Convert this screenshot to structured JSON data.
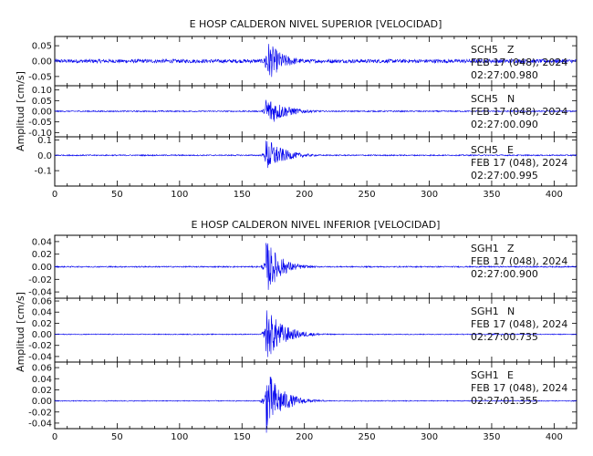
{
  "chart_data": [
    {
      "type": "line",
      "title": "E HOSP CALDERON NIVEL SUPERIOR [VELOCIDAD]",
      "ylabel": "Amplitud [cm/s]",
      "xlabel": "",
      "xlim": [
        0,
        418
      ],
      "xticks": [
        0,
        50,
        100,
        150,
        200,
        250,
        300,
        350,
        400
      ],
      "xtick_labels": [
        "0",
        "50",
        "100",
        "150",
        "200",
        "250",
        "300",
        "350",
        "400"
      ],
      "panels": [
        {
          "ylim": [
            -0.08,
            0.08
          ],
          "yticks": [
            -0.05,
            0.0,
            0.05
          ],
          "ytick_labels": [
            "-0.05",
            "0.00",
            "0.05"
          ],
          "station": "SCH5",
          "component": "Z",
          "date": "FEB 17 (048), 2024",
          "time": "02:27:00.980",
          "series": [
            {
              "component": "Z",
              "noise_amp": 0.006,
              "event_onset_s": 168,
              "peak_amp": 0.075,
              "decay_s": 12
            }
          ]
        },
        {
          "ylim": [
            -0.12,
            0.12
          ],
          "yticks": [
            -0.1,
            -0.05,
            0.0,
            0.05,
            0.1
          ],
          "ytick_labels": [
            "-0.10",
            "-0.05",
            "0.00",
            "0.05",
            "0.10"
          ],
          "station": "SCH5",
          "component": "N",
          "date": "FEB 17 (048), 2024",
          "time": "02:27:00.090",
          "series": [
            {
              "component": "N",
              "noise_amp": 0.003,
              "event_onset_s": 168,
              "peak_amp": 0.08,
              "decay_s": 14
            }
          ]
        },
        {
          "ylim": [
            -0.2,
            0.12
          ],
          "yticks": [
            -0.1,
            0.0,
            0.1
          ],
          "ytick_labels": [
            "-0.1",
            "0.0",
            "0.1"
          ],
          "station": "SCH5",
          "component": "E",
          "date": "FEB 17 (048), 2024",
          "time": "02:27:00.995",
          "series": [
            {
              "component": "E",
              "noise_amp": 0.004,
              "event_onset_s": 168,
              "peak_amp": 0.12,
              "decay_s": 13
            }
          ]
        }
      ]
    },
    {
      "type": "line",
      "title": "E HOSP CALDERON NIVEL INFERIOR [VELOCIDAD]",
      "ylabel": "Amplitud [cm/s]",
      "xlabel": "",
      "xlim": [
        0,
        418
      ],
      "xticks": [
        0,
        50,
        100,
        150,
        200,
        250,
        300,
        350,
        400
      ],
      "xtick_labels": [
        "0",
        "50",
        "100",
        "150",
        "200",
        "250",
        "300",
        "350",
        "400"
      ],
      "panels": [
        {
          "ylim": [
            -0.05,
            0.05
          ],
          "yticks": [
            -0.04,
            -0.02,
            0.0,
            0.02,
            0.04
          ],
          "ytick_labels": [
            "-0.04",
            "-0.02",
            "0.00",
            "0.02",
            "0.04"
          ],
          "station": "SGH1",
          "component": "Z",
          "date": "FEB 17 (048), 2024",
          "time": "02:27:00.900",
          "series": [
            {
              "component": "Z",
              "noise_amp": 0.001,
              "event_onset_s": 168,
              "peak_amp": 0.045,
              "decay_s": 11
            }
          ]
        },
        {
          "ylim": [
            -0.05,
            0.065
          ],
          "yticks": [
            -0.04,
            -0.02,
            0.0,
            0.02,
            0.04,
            0.06
          ],
          "ytick_labels": [
            "-0.04",
            "-0.02",
            "0.00",
            "0.02",
            "0.04",
            "0.06"
          ],
          "station": "SGH1",
          "component": "N",
          "date": "FEB 17 (048), 2024",
          "time": "02:27:00.735",
          "series": [
            {
              "component": "N",
              "noise_amp": 0.0008,
              "event_onset_s": 168,
              "peak_amp": 0.05,
              "decay_s": 13
            }
          ]
        },
        {
          "ylim": [
            -0.05,
            0.07
          ],
          "yticks": [
            -0.04,
            -0.02,
            0.0,
            0.02,
            0.04,
            0.06
          ],
          "ytick_labels": [
            "-0.04",
            "-0.02",
            "0.00",
            "0.02",
            "0.04",
            "0.06"
          ],
          "station": "SGH1",
          "component": "E",
          "date": "FEB 17 (048), 2024",
          "time": "02:27:01.355",
          "series": [
            {
              "component": "E",
              "noise_amp": 0.0008,
              "event_onset_s": 168,
              "peak_amp": 0.06,
              "decay_s": 12
            }
          ]
        }
      ]
    }
  ],
  "colors": {
    "trace": "#0000ee",
    "frame": "#000000"
  }
}
